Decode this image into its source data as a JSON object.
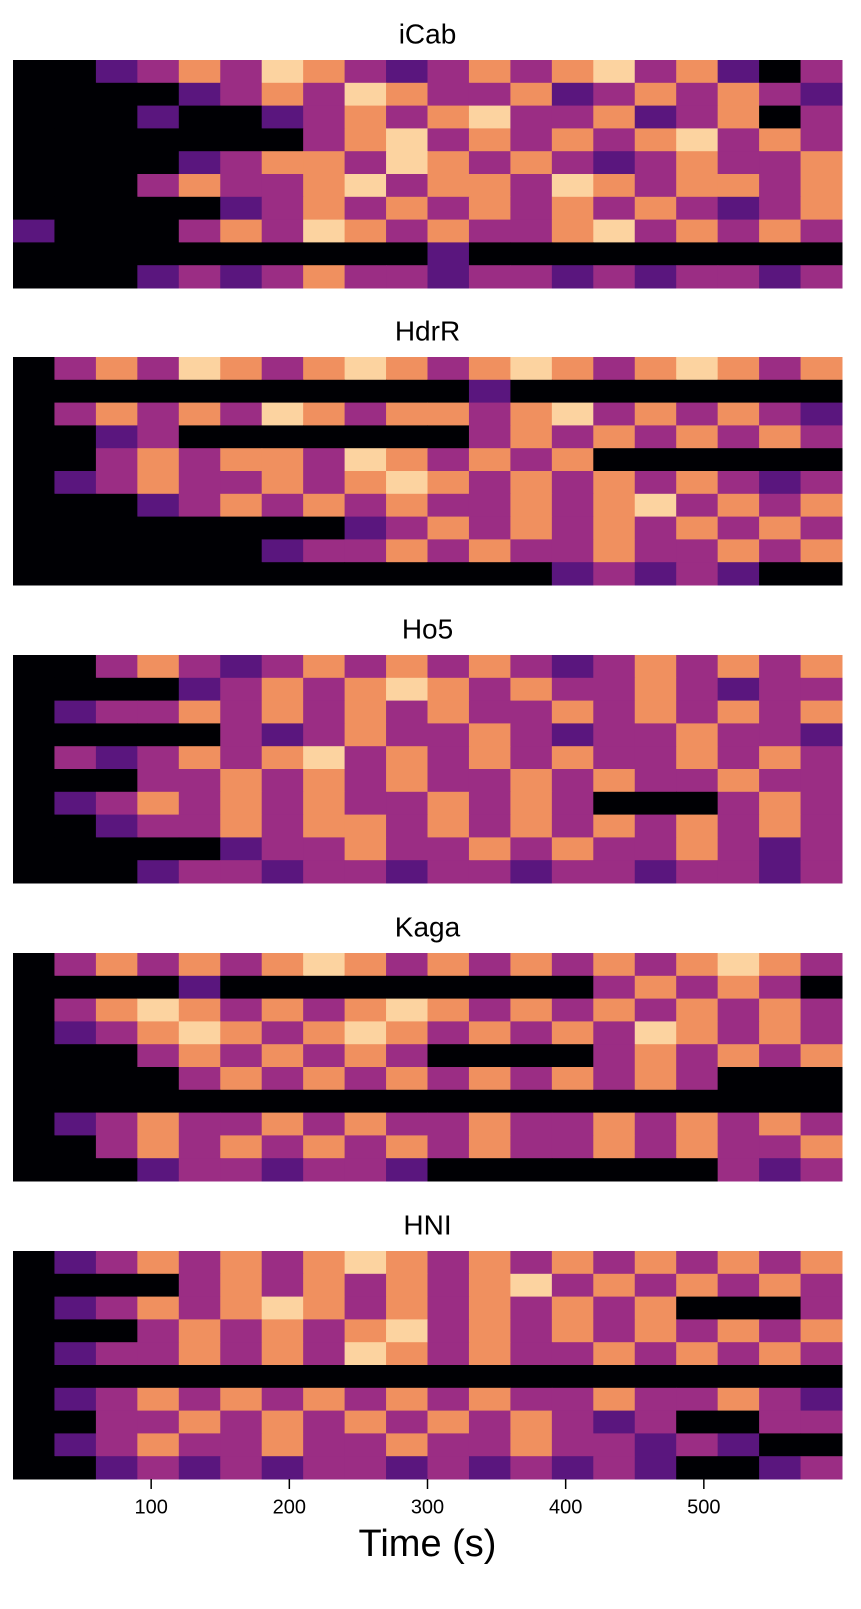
{
  "chart_data": [
    {
      "type": "heatmap",
      "title": "iCab",
      "xlim": [
        0,
        600
      ],
      "colors": [
        "#000004",
        "#5a167e",
        "#9b2d84",
        "#f0905f",
        "#fcd3a0"
      ],
      "z": [
        [
          0,
          0,
          1,
          2,
          3,
          2,
          4,
          3,
          2,
          1,
          2,
          3,
          2,
          3,
          4,
          2,
          3,
          1,
          0,
          2
        ],
        [
          0,
          0,
          0,
          0,
          1,
          2,
          3,
          2,
          4,
          3,
          2,
          2,
          3,
          1,
          2,
          3,
          2,
          3,
          2,
          1
        ],
        [
          0,
          0,
          0,
          1,
          0,
          0,
          1,
          2,
          3,
          2,
          3,
          4,
          2,
          2,
          3,
          1,
          2,
          3,
          0,
          2
        ],
        [
          0,
          0,
          0,
          0,
          0,
          0,
          0,
          2,
          3,
          4,
          2,
          3,
          2,
          3,
          2,
          3,
          4,
          2,
          3,
          2
        ],
        [
          0,
          0,
          0,
          0,
          1,
          2,
          3,
          3,
          2,
          4,
          3,
          2,
          3,
          2,
          1,
          2,
          3,
          2,
          2,
          3
        ],
        [
          0,
          0,
          0,
          2,
          3,
          2,
          2,
          3,
          4,
          2,
          3,
          3,
          2,
          4,
          3,
          2,
          3,
          3,
          2,
          3
        ],
        [
          0,
          0,
          0,
          0,
          0,
          1,
          2,
          3,
          2,
          3,
          2,
          3,
          2,
          3,
          2,
          3,
          2,
          1,
          2,
          3
        ],
        [
          1,
          0,
          0,
          0,
          2,
          3,
          2,
          4,
          3,
          2,
          3,
          2,
          2,
          3,
          4,
          2,
          3,
          2,
          3,
          2
        ],
        [
          0,
          0,
          0,
          0,
          0,
          0,
          0,
          0,
          0,
          0,
          1,
          0,
          0,
          0,
          0,
          0,
          0,
          0,
          0,
          0
        ],
        [
          0,
          0,
          0,
          1,
          2,
          1,
          2,
          3,
          2,
          2,
          1,
          2,
          2,
          1,
          2,
          1,
          2,
          2,
          1,
          2
        ]
      ]
    },
    {
      "type": "heatmap",
      "title": "HdrR",
      "xlim": [
        0,
        600
      ],
      "colors": [
        "#000004",
        "#5a167e",
        "#9b2d84",
        "#f0905f",
        "#fcd3a0"
      ],
      "z": [
        [
          0,
          2,
          3,
          2,
          4,
          3,
          2,
          3,
          4,
          3,
          2,
          3,
          4,
          3,
          2,
          3,
          4,
          3,
          2,
          3
        ],
        [
          0,
          0,
          0,
          0,
          0,
          0,
          0,
          0,
          0,
          0,
          0,
          1,
          0,
          0,
          0,
          0,
          0,
          0,
          0,
          0
        ],
        [
          0,
          2,
          3,
          2,
          3,
          2,
          4,
          3,
          2,
          3,
          3,
          2,
          3,
          4,
          2,
          3,
          2,
          3,
          2,
          1
        ],
        [
          0,
          0,
          1,
          2,
          0,
          0,
          0,
          0,
          0,
          0,
          0,
          2,
          3,
          2,
          3,
          2,
          3,
          2,
          3,
          2
        ],
        [
          0,
          0,
          2,
          3,
          2,
          3,
          3,
          2,
          4,
          3,
          2,
          3,
          2,
          3,
          0,
          0,
          0,
          0,
          0,
          0
        ],
        [
          0,
          1,
          2,
          3,
          2,
          2,
          3,
          2,
          3,
          4,
          3,
          2,
          3,
          2,
          3,
          2,
          3,
          2,
          1,
          2
        ],
        [
          0,
          0,
          0,
          1,
          2,
          3,
          2,
          3,
          2,
          3,
          2,
          2,
          3,
          2,
          3,
          4,
          2,
          3,
          2,
          3
        ],
        [
          0,
          0,
          0,
          0,
          0,
          0,
          0,
          0,
          1,
          2,
          3,
          2,
          3,
          2,
          3,
          2,
          3,
          2,
          3,
          2
        ],
        [
          0,
          0,
          0,
          0,
          0,
          0,
          1,
          2,
          2,
          3,
          2,
          3,
          2,
          2,
          3,
          2,
          2,
          3,
          2,
          3
        ],
        [
          0,
          0,
          0,
          0,
          0,
          0,
          0,
          0,
          0,
          0,
          0,
          0,
          0,
          1,
          2,
          1,
          2,
          1,
          0,
          0
        ]
      ]
    },
    {
      "type": "heatmap",
      "title": "Ho5",
      "xlim": [
        0,
        600
      ],
      "colors": [
        "#000004",
        "#5a167e",
        "#9b2d84",
        "#f0905f",
        "#fcd3a0"
      ],
      "z": [
        [
          0,
          0,
          2,
          3,
          2,
          1,
          2,
          3,
          2,
          3,
          2,
          3,
          2,
          1,
          2,
          3,
          2,
          3,
          2,
          3
        ],
        [
          0,
          0,
          0,
          0,
          1,
          2,
          3,
          2,
          3,
          4,
          3,
          2,
          3,
          2,
          2,
          3,
          2,
          1,
          2,
          2
        ],
        [
          0,
          1,
          2,
          2,
          3,
          2,
          3,
          2,
          3,
          2,
          3,
          2,
          2,
          3,
          2,
          3,
          2,
          3,
          2,
          3
        ],
        [
          0,
          0,
          0,
          0,
          0,
          2,
          1,
          2,
          3,
          2,
          2,
          3,
          2,
          1,
          2,
          2,
          3,
          2,
          2,
          1
        ],
        [
          0,
          2,
          1,
          2,
          3,
          2,
          3,
          4,
          2,
          3,
          2,
          3,
          2,
          3,
          2,
          2,
          3,
          2,
          3,
          2
        ],
        [
          0,
          0,
          0,
          2,
          2,
          3,
          2,
          3,
          2,
          3,
          2,
          2,
          3,
          2,
          3,
          2,
          2,
          3,
          2,
          2
        ],
        [
          0,
          1,
          2,
          3,
          2,
          3,
          2,
          3,
          2,
          2,
          3,
          2,
          3,
          2,
          0,
          0,
          0,
          2,
          3,
          2
        ],
        [
          0,
          0,
          1,
          2,
          2,
          3,
          2,
          3,
          3,
          2,
          3,
          2,
          3,
          2,
          3,
          2,
          3,
          2,
          3,
          2
        ],
        [
          0,
          0,
          0,
          0,
          0,
          1,
          2,
          2,
          3,
          2,
          2,
          3,
          2,
          3,
          2,
          2,
          3,
          2,
          1,
          2
        ],
        [
          0,
          0,
          0,
          1,
          2,
          2,
          1,
          2,
          2,
          1,
          2,
          2,
          1,
          2,
          2,
          1,
          2,
          2,
          1,
          2
        ]
      ]
    },
    {
      "type": "heatmap",
      "title": "Kaga",
      "xlim": [
        0,
        600
      ],
      "colors": [
        "#000004",
        "#5a167e",
        "#9b2d84",
        "#f0905f",
        "#fcd3a0"
      ],
      "z": [
        [
          0,
          2,
          3,
          2,
          3,
          2,
          3,
          4,
          3,
          2,
          3,
          2,
          3,
          2,
          3,
          2,
          3,
          4,
          3,
          2
        ],
        [
          0,
          0,
          0,
          0,
          1,
          0,
          0,
          0,
          0,
          0,
          0,
          0,
          0,
          0,
          2,
          3,
          2,
          3,
          2,
          0
        ],
        [
          0,
          2,
          3,
          4,
          3,
          2,
          3,
          2,
          3,
          4,
          3,
          2,
          3,
          2,
          3,
          2,
          3,
          2,
          3,
          2
        ],
        [
          0,
          1,
          2,
          3,
          4,
          3,
          2,
          3,
          4,
          3,
          2,
          3,
          2,
          3,
          2,
          4,
          3,
          2,
          3,
          2
        ],
        [
          0,
          0,
          0,
          2,
          3,
          2,
          3,
          2,
          3,
          2,
          0,
          0,
          0,
          0,
          2,
          3,
          2,
          3,
          2,
          3
        ],
        [
          0,
          0,
          0,
          0,
          2,
          3,
          2,
          3,
          2,
          3,
          2,
          3,
          2,
          3,
          2,
          3,
          2,
          0,
          0,
          0
        ],
        [
          0,
          0,
          0,
          0,
          0,
          0,
          0,
          0,
          0,
          0,
          0,
          0,
          0,
          0,
          0,
          0,
          0,
          0,
          0,
          0
        ],
        [
          0,
          1,
          2,
          3,
          2,
          2,
          3,
          2,
          3,
          2,
          2,
          3,
          2,
          2,
          3,
          2,
          3,
          2,
          3,
          2
        ],
        [
          0,
          0,
          2,
          3,
          2,
          3,
          2,
          3,
          2,
          3,
          2,
          3,
          2,
          2,
          3,
          2,
          3,
          2,
          2,
          3
        ],
        [
          0,
          0,
          0,
          1,
          2,
          2,
          1,
          2,
          2,
          1,
          0,
          0,
          0,
          0,
          0,
          0,
          0,
          2,
          1,
          2
        ]
      ]
    },
    {
      "type": "heatmap",
      "title": "HNI",
      "xlim": [
        0,
        600
      ],
      "xlabel": "Time (s)",
      "xticks": [
        100,
        200,
        300,
        400,
        500
      ],
      "colors": [
        "#000004",
        "#5a167e",
        "#9b2d84",
        "#f0905f",
        "#fcd3a0"
      ],
      "z": [
        [
          0,
          1,
          2,
          3,
          2,
          3,
          2,
          3,
          4,
          3,
          2,
          3,
          2,
          3,
          2,
          3,
          2,
          3,
          2,
          3
        ],
        [
          0,
          0,
          0,
          0,
          2,
          3,
          2,
          3,
          2,
          3,
          2,
          3,
          4,
          2,
          3,
          2,
          3,
          2,
          3,
          2
        ],
        [
          0,
          1,
          2,
          3,
          2,
          3,
          4,
          3,
          2,
          3,
          2,
          3,
          2,
          3,
          2,
          3,
          0,
          0,
          0,
          2
        ],
        [
          0,
          0,
          0,
          2,
          3,
          2,
          3,
          2,
          3,
          4,
          2,
          3,
          2,
          3,
          2,
          3,
          2,
          3,
          2,
          3
        ],
        [
          0,
          1,
          2,
          2,
          3,
          2,
          3,
          2,
          4,
          3,
          2,
          3,
          2,
          2,
          3,
          2,
          3,
          2,
          3,
          2
        ],
        [
          0,
          0,
          0,
          0,
          0,
          0,
          0,
          0,
          0,
          0,
          0,
          0,
          0,
          0,
          0,
          0,
          0,
          0,
          0,
          0
        ],
        [
          0,
          1,
          2,
          3,
          2,
          3,
          2,
          3,
          2,
          3,
          2,
          3,
          2,
          2,
          3,
          2,
          2,
          3,
          2,
          1
        ],
        [
          0,
          0,
          2,
          2,
          3,
          2,
          3,
          2,
          3,
          2,
          3,
          2,
          3,
          2,
          1,
          2,
          0,
          0,
          2,
          2
        ],
        [
          0,
          1,
          2,
          3,
          2,
          2,
          3,
          2,
          2,
          3,
          2,
          2,
          3,
          2,
          2,
          1,
          2,
          1,
          0,
          0
        ],
        [
          0,
          0,
          1,
          2,
          1,
          2,
          1,
          2,
          2,
          1,
          2,
          1,
          2,
          1,
          2,
          1,
          0,
          0,
          1,
          2
        ]
      ]
    }
  ]
}
